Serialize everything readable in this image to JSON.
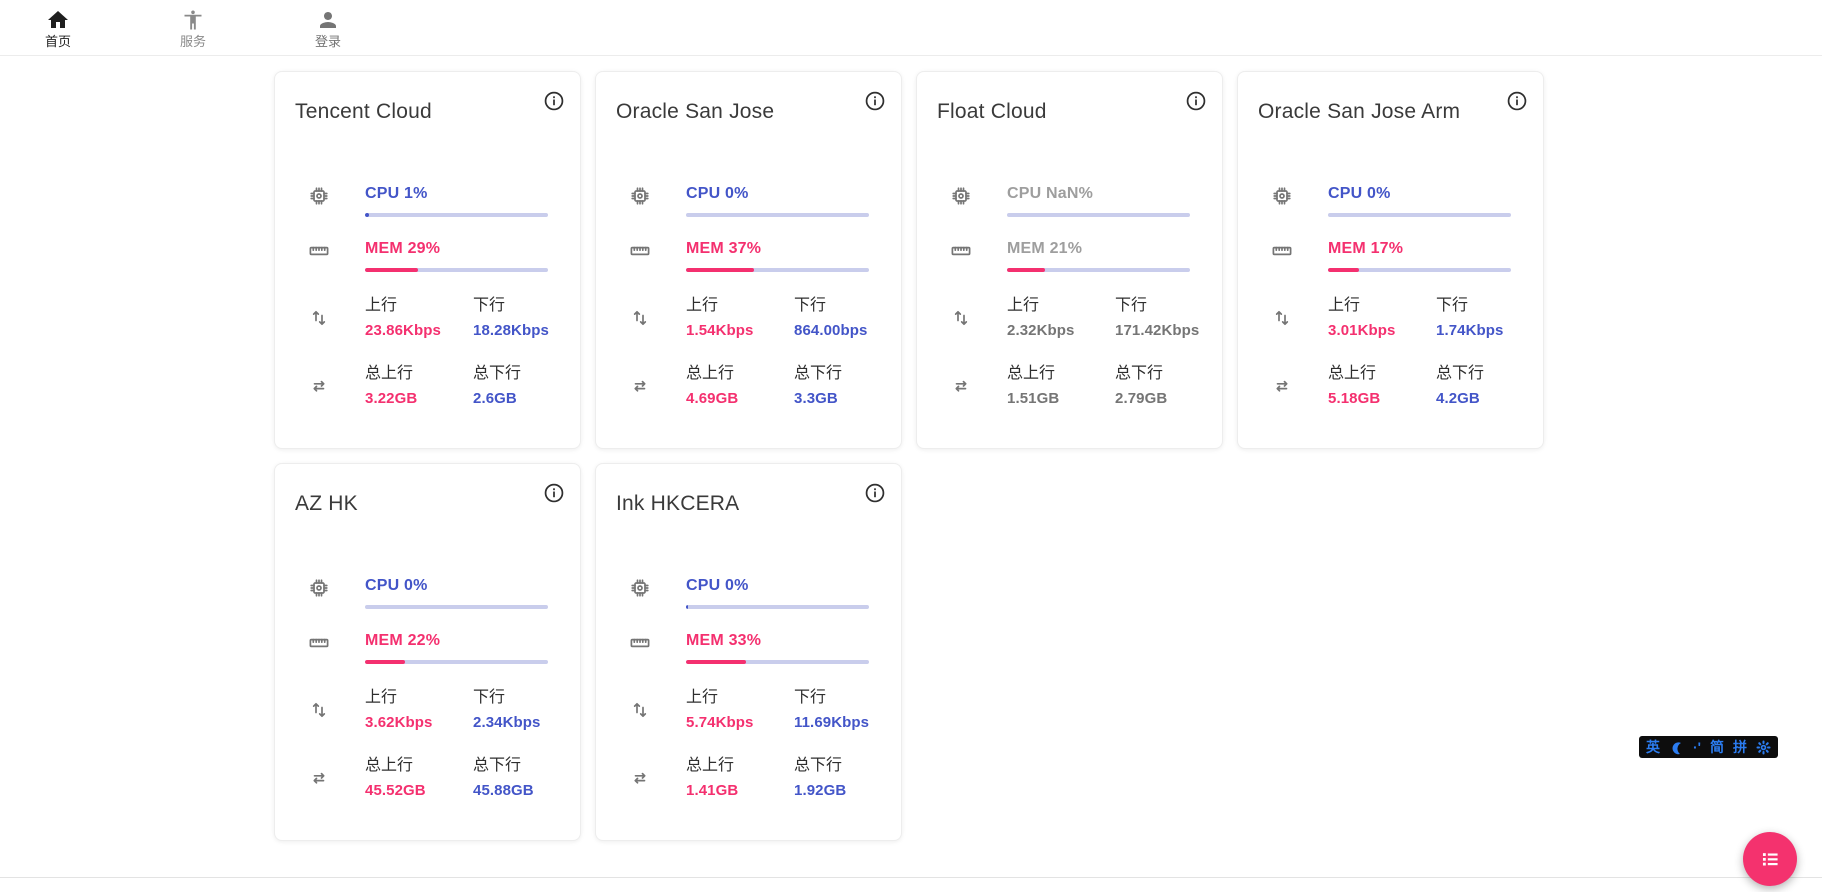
{
  "nav": {
    "home": {
      "label": "首页",
      "active": true
    },
    "services": {
      "label": "服务",
      "active": false
    },
    "login": {
      "label": "登录"
    }
  },
  "labels": {
    "up": "上行",
    "down": "下行",
    "total_up": "总上行",
    "total_down": "总下行"
  },
  "colors": {
    "cpu_blue": "#4355c8",
    "mem_pink": "#f4306f",
    "bar_track": "#c9cdec",
    "offline_label_gray": "#9e9e9e",
    "offline_value_gray": "#757575",
    "fab_pink": "#f4326e",
    "ime_blue": "#2b7cf0",
    "ime_background": "#0d0d0d"
  },
  "servers": [
    {
      "name": "Tencent Cloud",
      "cpu_label": "CPU 1%",
      "cpu_bar_pct": 2,
      "mem_label": "MEM 29%",
      "mem_pct": 29,
      "up": "23.86Kbps",
      "down": "18.28Kbps",
      "total_up": "3.22GB",
      "total_down": "2.6GB",
      "offline": false
    },
    {
      "name": "Oracle San Jose",
      "cpu_label": "CPU 0%",
      "cpu_bar_pct": 0,
      "mem_label": "MEM 37%",
      "mem_pct": 37,
      "up": "1.54Kbps",
      "down": "864.00bps",
      "total_up": "4.69GB",
      "total_down": "3.3GB",
      "offline": false
    },
    {
      "name": "Float Cloud",
      "cpu_label": "CPU NaN%",
      "cpu_bar_pct": 0,
      "mem_label": "MEM 21%",
      "mem_pct": 21,
      "up": "2.32Kbps",
      "down": "171.42Kbps",
      "total_up": "1.51GB",
      "total_down": "2.79GB",
      "offline": true
    },
    {
      "name": "Oracle San Jose Arm",
      "cpu_label": "CPU 0%",
      "cpu_bar_pct": 0,
      "mem_label": "MEM 17%",
      "mem_pct": 17,
      "up": "3.01Kbps",
      "down": "1.74Kbps",
      "total_up": "5.18GB",
      "total_down": "4.2GB",
      "offline": false
    },
    {
      "name": "AZ HK",
      "cpu_label": "CPU 0%",
      "cpu_bar_pct": 0,
      "mem_label": "MEM 22%",
      "mem_pct": 22,
      "up": "3.62Kbps",
      "down": "2.34Kbps",
      "total_up": "45.52GB",
      "total_down": "45.88GB",
      "offline": false
    },
    {
      "name": "Ink HKCERA",
      "cpu_label": "CPU 0%",
      "cpu_bar_pct": 1,
      "mem_label": "MEM 33%",
      "mem_pct": 33,
      "up": "5.74Kbps",
      "down": "11.69Kbps",
      "total_up": "1.41GB",
      "total_down": "1.92GB",
      "offline": false
    }
  ],
  "ime": {
    "items": [
      {
        "name": "ime-lang-english",
        "label": "英"
      },
      {
        "name": "ime-fullwidth-moon-icon",
        "icon": "moon"
      },
      {
        "name": "ime-punctuation",
        "label": "·'"
      },
      {
        "name": "ime-simplified-chinese",
        "label": "简"
      },
      {
        "name": "ime-pinyin",
        "label": "拼"
      },
      {
        "name": "ime-settings-gear-icon",
        "icon": "gear"
      }
    ]
  }
}
